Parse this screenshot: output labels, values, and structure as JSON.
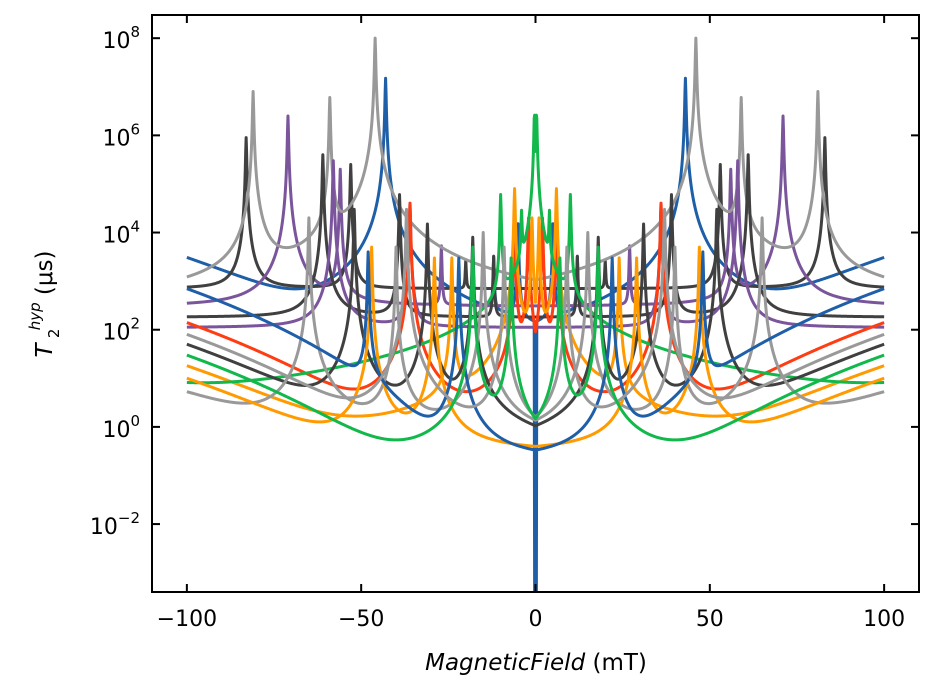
{
  "chart_data": {
    "type": "line",
    "title": "",
    "xlabel": "MagneticField",
    "xlabel_unit": "(mT)",
    "ylabel": "T",
    "ylabel_sub": "2",
    "ylabel_sup": "hyp",
    "ylabel_unit": "(μs)",
    "xlim": [
      -110,
      110
    ],
    "ylim": [
      0.0004,
      300000000
    ],
    "yscale": "log",
    "grid": false,
    "legend": "none",
    "x_ticks": [
      {
        "value": -100,
        "label": "−100"
      },
      {
        "value": -50,
        "label": "−50"
      },
      {
        "value": 0,
        "label": "0"
      },
      {
        "value": 50,
        "label": "50"
      },
      {
        "value": 100,
        "label": "100"
      }
    ],
    "y_ticks": [
      {
        "value": 0.01,
        "base": "10",
        "exp": "−2"
      },
      {
        "value": 1,
        "base": "10",
        "exp": "0"
      },
      {
        "value": 100,
        "base": "10",
        "exp": "2"
      },
      {
        "value": 10000,
        "base": "10",
        "exp": "4"
      },
      {
        "value": 1000000,
        "base": "10",
        "exp": "6"
      },
      {
        "value": 100000000,
        "base": "10",
        "exp": "8"
      }
    ],
    "colors": [
      "#1f5fa8",
      "#404040",
      "#7b559c",
      "#999999",
      "#ff3d12",
      "#ff9a00",
      "#12b84b"
    ],
    "series": [
      {
        "color": "#1f5fa8",
        "baseline": 0.2,
        "edge": 3000,
        "resonances": [
          [
            43,
            15000000
          ],
          [
            5,
            15000
          ],
          [
            12,
            3000
          ]
        ],
        "center_dip": 0.0004
      },
      {
        "color": "#404040",
        "baseline": 700,
        "edge": 700,
        "resonances": [
          [
            83,
            900000
          ],
          [
            53,
            250000
          ],
          [
            20,
            2000
          ]
        ]
      },
      {
        "color": "#7b559c",
        "baseline": 300,
        "edge": 300,
        "resonances": [
          [
            71,
            2500000
          ],
          [
            56,
            200000
          ],
          [
            27,
            5000
          ]
        ]
      },
      {
        "color": "#999999",
        "baseline": 220,
        "edge": 220,
        "resonances": [
          [
            81,
            8000000
          ],
          [
            46,
            100000000
          ],
          [
            59,
            6000000
          ]
        ]
      },
      {
        "color": "#404040",
        "baseline": 180,
        "edge": 180,
        "resonances": [
          [
            61,
            400000
          ],
          [
            39,
            60000
          ],
          [
            12,
            3000
          ]
        ]
      },
      {
        "color": "#7b559c",
        "baseline": 110,
        "edge": 110,
        "resonances": [
          [
            58,
            300000
          ],
          [
            36,
            40000
          ]
        ]
      },
      {
        "color": "#ff3d12",
        "baseline": 0.4,
        "edge": 140,
        "resonances": [
          [
            36,
            40000
          ],
          [
            2,
            20000
          ],
          [
            6,
            15000
          ]
        ]
      },
      {
        "color": "#ff9a00",
        "baseline": 0.5,
        "edge": 18,
        "resonances": [
          [
            24,
            3000
          ],
          [
            6,
            80000
          ],
          [
            1,
            20000
          ]
        ]
      },
      {
        "color": "#12b84b",
        "baseline": 0.5,
        "edge": 3,
        "resonances": [
          [
            0.3,
            3000000
          ],
          [
            10,
            60000
          ],
          [
            4,
            25000
          ]
        ]
      },
      {
        "color": "#404040",
        "baseline": 0.2,
        "edge": 50,
        "resonances": [
          [
            52,
            30000
          ],
          [
            31,
            15000
          ],
          [
            18,
            8000
          ]
        ]
      },
      {
        "color": "#999999",
        "baseline": 0.5,
        "edge": 5,
        "resonances": [
          [
            65,
            20000
          ],
          [
            40,
            5000
          ],
          [
            15,
            10000
          ]
        ]
      },
      {
        "color": "#ff9a00",
        "baseline": 0.3,
        "edge": 10,
        "resonances": [
          [
            47,
            5000
          ],
          [
            29,
            3000
          ]
        ]
      },
      {
        "color": "#1f5fa8",
        "baseline": 0.2,
        "edge": 700,
        "resonances": [
          [
            48,
            4000
          ],
          [
            22,
            3000
          ]
        ]
      },
      {
        "color": "#999999",
        "baseline": 0.2,
        "edge": 80,
        "resonances": [
          [
            37,
            30000
          ],
          [
            9,
            5000
          ]
        ]
      },
      {
        "color": "#12b84b",
        "baseline": 0.2,
        "edge": 30,
        "resonances": [
          [
            18,
            5000
          ],
          [
            7,
            3000
          ]
        ]
      }
    ]
  }
}
